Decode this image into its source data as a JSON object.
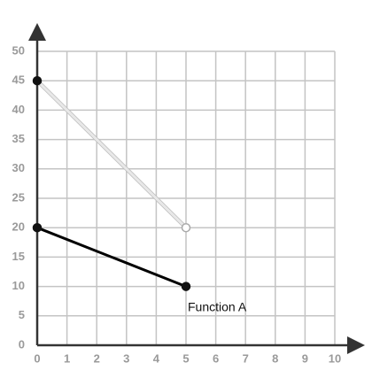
{
  "chart_data": {
    "type": "line",
    "annotation": "Function A",
    "series": [
      {
        "color": "#000000",
        "x": [
          0,
          5
        ],
        "values": [
          20,
          10
        ],
        "endpoints": [
          "closed",
          "closed"
        ]
      },
      {
        "color": "#e8e8e8",
        "x": [
          0,
          5
        ],
        "values": [
          45,
          20
        ],
        "endpoints": [
          "closed",
          "open"
        ]
      }
    ],
    "xlim": [
      0,
      10
    ],
    "ylim": [
      0,
      50
    ],
    "xticks": [
      0,
      1,
      2,
      3,
      4,
      5,
      6,
      7,
      8,
      9,
      10
    ],
    "yticks": [
      0,
      5,
      10,
      15,
      20,
      25,
      30,
      35,
      40,
      45,
      50
    ],
    "grid": true
  }
}
